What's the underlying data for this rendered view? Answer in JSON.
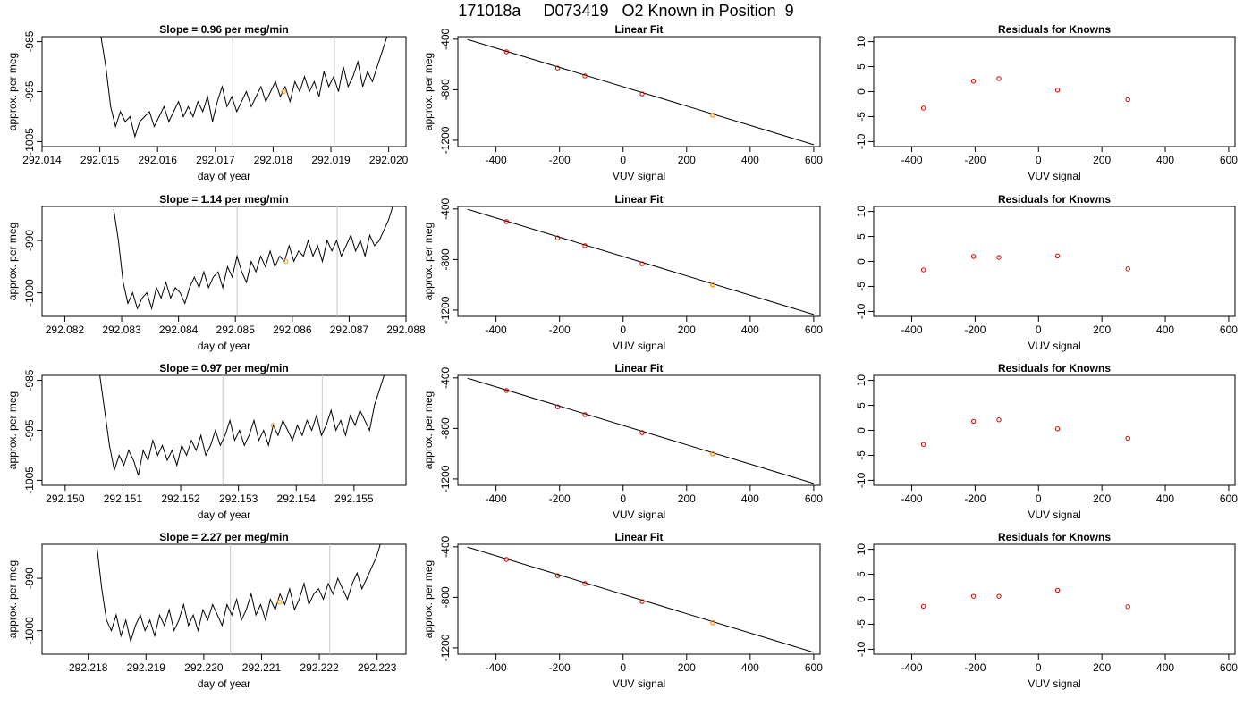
{
  "title": "171018a     D073419   O2 Known in Position  9",
  "colors": {
    "line": "#000000",
    "points": "#cc0000",
    "highlight": "#ff9900",
    "marker_lines": "#c8c8c8"
  },
  "chart_data": [
    {
      "type": "line",
      "row": 0,
      "title": "Slope =  0.96  per meg/min",
      "xlabel": "day of year",
      "ylabel": "approx. per meg",
      "xlim": [
        292.014,
        292.0203
      ],
      "ylim": [
        -1006,
        -984
      ],
      "xticks": [
        292.014,
        292.015,
        292.016,
        292.017,
        292.018,
        292.019,
        292.02
      ],
      "xtick_labels": [
        "292.014",
        "292.015",
        "292.016",
        "292.017",
        "292.018",
        "292.019",
        "292.020"
      ],
      "yticks": [
        -1005,
        -995,
        -985
      ],
      "ytick_labels": [
        "-1005",
        "-995",
        "-985"
      ],
      "vlines": [
        292.0173,
        292.01906
      ],
      "highlight_point": {
        "x": 292.01818,
        "y": -995.0
      },
      "trace": {
        "x_start": 292.01502,
        "x_end": 292.01997,
        "y": [
          -984,
          -990,
          -998,
          -1002,
          -999,
          -1001,
          -1000,
          -1004,
          -1001,
          -1000,
          -999,
          -1002,
          -1000,
          -998,
          -1001,
          -999,
          -997,
          -1000,
          -998,
          -1000,
          -997,
          -999,
          -996,
          -1001,
          -997,
          -994,
          -998,
          -996,
          -999,
          -997,
          -995,
          -998,
          -996,
          -994,
          -997,
          -995,
          -993,
          -996,
          -994,
          -997,
          -993,
          -995,
          -992,
          -995,
          -993,
          -996,
          -991,
          -994,
          -992,
          -995,
          -990,
          -994,
          -992,
          -989,
          -994,
          -991,
          -993,
          -990,
          -987,
          -984
        ]
      }
    },
    {
      "type": "scatter",
      "row": 0,
      "title": "Linear Fit",
      "xlabel": "VUV signal",
      "ylabel": "approx. per meg",
      "xlim": [
        -520,
        620
      ],
      "ylim": [
        -1250,
        -380
      ],
      "xticks": [
        -400,
        -200,
        0,
        200,
        400,
        600
      ],
      "xtick_labels": [
        "-400",
        "-200",
        "0",
        "200",
        "400",
        "600"
      ],
      "yticks": [
        -1200,
        -800,
        -400
      ],
      "ytick_labels": [
        "-1200",
        "-800",
        "-400"
      ],
      "fit_line": {
        "x": [
          -490,
          600
        ],
        "y": [
          -402,
          -1235
        ]
      },
      "points": {
        "x": [
          -367,
          -206,
          -120,
          60,
          282
        ],
        "y": [
          -500,
          -629,
          -691,
          -833,
          -1001
        ]
      },
      "highlight_point": {
        "x": 282,
        "y": -1001
      }
    },
    {
      "type": "scatter",
      "row": 0,
      "title": "Residuals for Knowns",
      "xlabel": "VUV signal",
      "ylabel": "",
      "xlim": [
        -520,
        620
      ],
      "ylim": [
        -11,
        11
      ],
      "xticks": [
        -400,
        -200,
        0,
        200,
        400,
        600
      ],
      "xtick_labels": [
        "-400",
        "-200",
        "0",
        "200",
        "400",
        "600"
      ],
      "yticks": [
        -10,
        -5,
        0,
        5,
        10
      ],
      "ytick_labels": [
        "-10",
        "-5",
        "0",
        "5",
        "10"
      ],
      "points": {
        "x": [
          -363,
          -205,
          -125,
          60,
          282
        ],
        "y": [
          -3.3,
          2.1,
          2.6,
          0.3,
          -1.6
        ]
      }
    },
    {
      "type": "line",
      "row": 1,
      "title": "Slope =  1.14  per meg/min",
      "xlabel": "day of year",
      "ylabel": "approx. per meg",
      "xlim": [
        292.0816,
        292.088
      ],
      "ylim": [
        -1004.5,
        -983.5
      ],
      "xticks": [
        292.082,
        292.083,
        292.084,
        292.085,
        292.086,
        292.087,
        292.088
      ],
      "xtick_labels": [
        "292.082",
        "292.083",
        "292.084",
        "292.085",
        "292.086",
        "292.087",
        "292.088"
      ],
      "yticks": [
        -1000,
        -990
      ],
      "ytick_labels": [
        "-1000",
        "-990"
      ],
      "vlines": [
        292.08503,
        292.08679
      ],
      "highlight_point": {
        "x": 292.08589,
        "y": -994.0
      },
      "trace": {
        "x_start": 292.08286,
        "x_end": 292.08778,
        "y": [
          -984,
          -990,
          -998,
          -1002,
          -1000,
          -1003,
          -1001,
          -1000,
          -1003,
          -999,
          -1001,
          -998,
          -1001,
          -999,
          -1000,
          -1002,
          -999,
          -997,
          -999,
          -996,
          -999,
          -997,
          -996,
          -999,
          -995,
          -997,
          -993,
          -996,
          -998,
          -994,
          -996,
          -993,
          -995,
          -992,
          -995,
          -993,
          -994,
          -991,
          -994,
          -992,
          -993,
          -990,
          -993,
          -991,
          -994,
          -990,
          -992,
          -990,
          -993,
          -991,
          -989,
          -992,
          -990,
          -993,
          -989,
          -991,
          -990,
          -988,
          -986,
          -983
        ]
      }
    },
    {
      "type": "scatter",
      "row": 1,
      "title": "Linear Fit",
      "xlabel": "VUV signal",
      "ylabel": "approx. per meg",
      "xlim": [
        -520,
        620
      ],
      "ylim": [
        -1250,
        -380
      ],
      "xticks": [
        -400,
        -200,
        0,
        200,
        400,
        600
      ],
      "xtick_labels": [
        "-400",
        "-200",
        "0",
        "200",
        "400",
        "600"
      ],
      "yticks": [
        -1200,
        -800,
        -400
      ],
      "ytick_labels": [
        "-1200",
        "-800",
        "-400"
      ],
      "fit_line": {
        "x": [
          -490,
          600
        ],
        "y": [
          -402,
          -1235
        ]
      },
      "points": {
        "x": [
          -367,
          -206,
          -120,
          60,
          282
        ],
        "y": [
          -500,
          -629,
          -691,
          -833,
          -1001
        ]
      },
      "highlight_point": {
        "x": 282,
        "y": -1001
      }
    },
    {
      "type": "scatter",
      "row": 1,
      "title": "Residuals for Knowns",
      "xlabel": "VUV signal",
      "ylabel": "",
      "xlim": [
        -520,
        620
      ],
      "ylim": [
        -11,
        11
      ],
      "xticks": [
        -400,
        -200,
        0,
        200,
        400,
        600
      ],
      "xtick_labels": [
        "-400",
        "-200",
        "0",
        "200",
        "400",
        "600"
      ],
      "yticks": [
        -10,
        -5,
        0,
        5,
        10
      ],
      "ytick_labels": [
        "-10",
        "-5",
        "0",
        "5",
        "10"
      ],
      "points": {
        "x": [
          -363,
          -205,
          -125,
          60,
          282
        ],
        "y": [
          -1.7,
          1.0,
          0.8,
          1.1,
          -1.5
        ]
      }
    },
    {
      "type": "line",
      "row": 2,
      "title": "Slope =  0.97  per meg/min",
      "xlabel": "day of year",
      "ylabel": "approx. per meg",
      "xlim": [
        292.1496,
        292.1559
      ],
      "ylim": [
        -1006,
        -984
      ],
      "xticks": [
        292.15,
        292.151,
        292.152,
        292.153,
        292.154,
        292.155
      ],
      "xtick_labels": [
        "292.150",
        "292.151",
        "292.152",
        "292.153",
        "292.154",
        "292.155"
      ],
      "yticks": [
        -1005,
        -995,
        -985
      ],
      "ytick_labels": [
        "-1005",
        "-995",
        "-985"
      ],
      "vlines": [
        292.15273,
        292.15445
      ],
      "highlight_point": {
        "x": 292.1536,
        "y": -994.0
      },
      "trace": {
        "x_start": 292.1506,
        "x_end": 292.15552,
        "y": [
          -984,
          -991,
          -998,
          -1003,
          -1000,
          -1002,
          -999,
          -1001,
          -1004,
          -999,
          -1001,
          -997,
          -1000,
          -998,
          -1001,
          -999,
          -1002,
          -998,
          -1000,
          -997,
          -999,
          -996,
          -1000,
          -998,
          -995,
          -998,
          -996,
          -993,
          -997,
          -995,
          -998,
          -996,
          -993,
          -997,
          -995,
          -998,
          -994,
          -996,
          -993,
          -995,
          -997,
          -994,
          -996,
          -993,
          -995,
          -992,
          -996,
          -994,
          -991,
          -995,
          -993,
          -996,
          -992,
          -994,
          -991,
          -993,
          -995,
          -990,
          -987,
          -984
        ]
      }
    },
    {
      "type": "scatter",
      "row": 2,
      "title": "Linear Fit",
      "xlabel": "VUV signal",
      "ylabel": "approx. per meg",
      "xlim": [
        -520,
        620
      ],
      "ylim": [
        -1250,
        -380
      ],
      "xticks": [
        -400,
        -200,
        0,
        200,
        400,
        600
      ],
      "xtick_labels": [
        "-400",
        "-200",
        "0",
        "200",
        "400",
        "600"
      ],
      "yticks": [
        -1200,
        -800,
        -400
      ],
      "ytick_labels": [
        "-1200",
        "-800",
        "-400"
      ],
      "fit_line": {
        "x": [
          -490,
          600
        ],
        "y": [
          -402,
          -1235
        ]
      },
      "points": {
        "x": [
          -367,
          -206,
          -120,
          60,
          282
        ],
        "y": [
          -500,
          -629,
          -691,
          -833,
          -1001
        ]
      },
      "highlight_point": {
        "x": 282,
        "y": -1001
      }
    },
    {
      "type": "scatter",
      "row": 2,
      "title": "Residuals for Knowns",
      "xlabel": "VUV signal",
      "ylabel": "",
      "xlim": [
        -520,
        620
      ],
      "ylim": [
        -11,
        11
      ],
      "xticks": [
        -400,
        -200,
        0,
        200,
        400,
        600
      ],
      "xtick_labels": [
        "-400",
        "-200",
        "0",
        "200",
        "400",
        "600"
      ],
      "yticks": [
        -10,
        -5,
        0,
        5,
        10
      ],
      "ytick_labels": [
        "-10",
        "-5",
        "0",
        "5",
        "10"
      ],
      "points": {
        "x": [
          -363,
          -205,
          -125,
          60,
          282
        ],
        "y": [
          -2.8,
          1.8,
          2.1,
          0.3,
          -1.6
        ]
      }
    },
    {
      "type": "line",
      "row": 3,
      "title": "Slope =  2.27  per meg/min",
      "xlabel": "day of year",
      "ylabel": "approx. per meg",
      "xlim": [
        292.2172,
        292.2235
      ],
      "ylim": [
        -1004.5,
        -983.5
      ],
      "xticks": [
        292.218,
        292.219,
        292.22,
        292.221,
        292.222,
        292.223
      ],
      "xtick_labels": [
        "292.218",
        "292.219",
        "292.220",
        "292.221",
        "292.222",
        "292.223"
      ],
      "yticks": [
        -1000,
        -990
      ],
      "ytick_labels": [
        "-1000",
        "-990"
      ],
      "vlines": [
        292.22046,
        292.22218
      ],
      "highlight_point": {
        "x": 292.22131,
        "y": -994.5
      },
      "trace": {
        "x_start": 292.21815,
        "x_end": 292.22307,
        "y": [
          -984,
          -992,
          -998,
          -1000,
          -997,
          -1001,
          -998,
          -1002,
          -999,
          -997,
          -1000,
          -998,
          -1001,
          -997,
          -999,
          -996,
          -1000,
          -998,
          -995,
          -999,
          -997,
          -1000,
          -996,
          -998,
          -995,
          -997,
          -999,
          -995,
          -997,
          -994,
          -998,
          -996,
          -993,
          -997,
          -995,
          -998,
          -994,
          -996,
          -993,
          -995,
          -992,
          -996,
          -994,
          -991,
          -995,
          -993,
          -992,
          -994,
          -991,
          -993,
          -990,
          -992,
          -994,
          -991,
          -989,
          -992,
          -990,
          -988,
          -986,
          -983
        ]
      }
    },
    {
      "type": "scatter",
      "row": 3,
      "title": "Linear Fit",
      "xlabel": "VUV signal",
      "ylabel": "approx. per meg",
      "xlim": [
        -520,
        620
      ],
      "ylim": [
        -1250,
        -380
      ],
      "xticks": [
        -400,
        -200,
        0,
        200,
        400,
        600
      ],
      "xtick_labels": [
        "-400",
        "-200",
        "0",
        "200",
        "400",
        "600"
      ],
      "yticks": [
        -1200,
        -800,
        -400
      ],
      "ytick_labels": [
        "-1200",
        "-800",
        "-400"
      ],
      "fit_line": {
        "x": [
          -490,
          600
        ],
        "y": [
          -402,
          -1235
        ]
      },
      "points": {
        "x": [
          -367,
          -206,
          -120,
          60,
          282
        ],
        "y": [
          -500,
          -629,
          -691,
          -833,
          -1001
        ]
      },
      "highlight_point": {
        "x": 282,
        "y": -1001
      }
    },
    {
      "type": "scatter",
      "row": 3,
      "title": "Residuals for Knowns",
      "xlabel": "VUV signal",
      "ylabel": "",
      "xlim": [
        -520,
        620
      ],
      "ylim": [
        -11,
        11
      ],
      "xticks": [
        -400,
        -200,
        0,
        200,
        400,
        600
      ],
      "xtick_labels": [
        "-400",
        "-200",
        "0",
        "200",
        "400",
        "600"
      ],
      "yticks": [
        -10,
        -5,
        0,
        5,
        10
      ],
      "ytick_labels": [
        "-10",
        "-5",
        "0",
        "5",
        "10"
      ],
      "points": {
        "x": [
          -363,
          -205,
          -125,
          60,
          282
        ],
        "y": [
          -1.4,
          0.6,
          0.6,
          1.8,
          -1.5
        ]
      }
    }
  ]
}
